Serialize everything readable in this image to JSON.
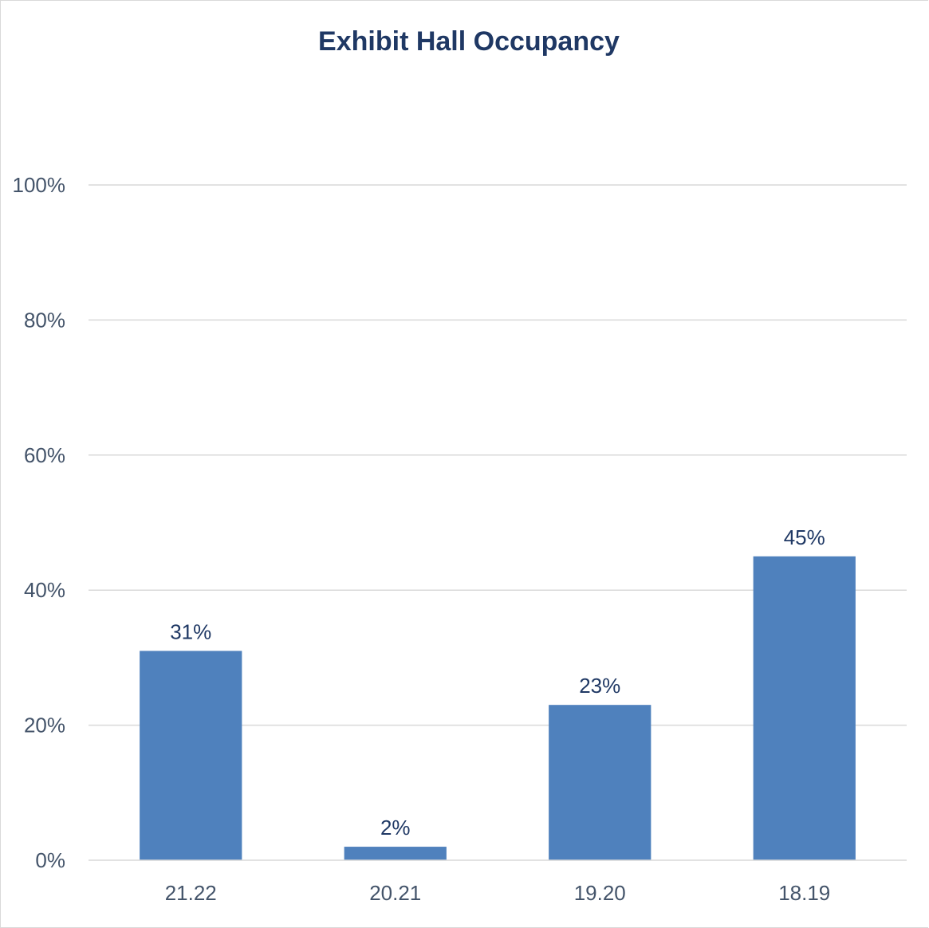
{
  "chart_data": {
    "type": "bar",
    "title": "Exhibit Hall Occupancy",
    "categories": [
      "21.22",
      "20.21",
      "19.20",
      "18.19"
    ],
    "series": [
      {
        "values": [
          31,
          2,
          23,
          45
        ]
      }
    ],
    "data_labels": [
      "31%",
      "2%",
      "23%",
      "45%"
    ],
    "y_ticks": [
      "0%",
      "20%",
      "40%",
      "60%",
      "80%",
      "100%"
    ],
    "ylim": [
      0,
      100
    ],
    "grid": true,
    "legend": "none"
  },
  "colors": {
    "bar": "#4f81bd",
    "title": "#1f3864",
    "data_label": "#1f3864",
    "tick_label": "#44546a",
    "grid": "#d9d9d9"
  }
}
